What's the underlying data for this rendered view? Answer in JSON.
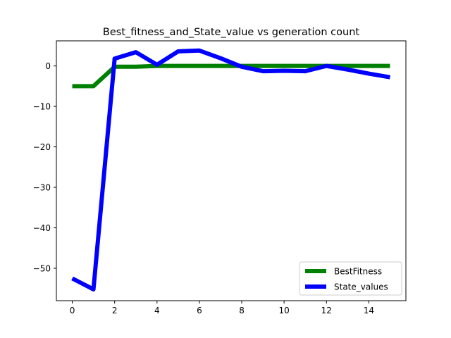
{
  "chart_data": {
    "type": "line",
    "title": "Best_fitness_and_State_value vs generation count",
    "xlabel": "",
    "ylabel": "",
    "xlim": [
      -0.75,
      15.75
    ],
    "ylim": [
      -58,
      6.2
    ],
    "xticks": [
      0,
      2,
      4,
      6,
      8,
      10,
      12,
      14
    ],
    "yticks": [
      0,
      -10,
      -20,
      -30,
      -40,
      -50
    ],
    "grid": false,
    "legend_position": "lower-right",
    "series": [
      {
        "name": "BestFitness",
        "color": "#008000",
        "x": [
          0,
          1,
          2,
          3,
          4,
          5,
          6,
          7,
          8,
          9,
          10,
          11,
          12,
          13,
          14,
          15
        ],
        "values": [
          -5,
          -5,
          -0.2,
          -0.2,
          0,
          0,
          0,
          0,
          0,
          0,
          0,
          0,
          0,
          0,
          0,
          0
        ]
      },
      {
        "name": "State_values",
        "color": "#0000ff",
        "x": [
          0,
          1,
          2,
          3,
          4,
          5,
          6,
          7,
          8,
          9,
          10,
          11,
          12,
          13,
          14,
          15
        ],
        "values": [
          -52.5,
          -55.2,
          1.8,
          3.4,
          0.3,
          3.6,
          3.8,
          1.9,
          -0.2,
          -1.3,
          -1.2,
          -1.3,
          0,
          -0.9,
          -1.9,
          -2.8
        ]
      }
    ]
  }
}
